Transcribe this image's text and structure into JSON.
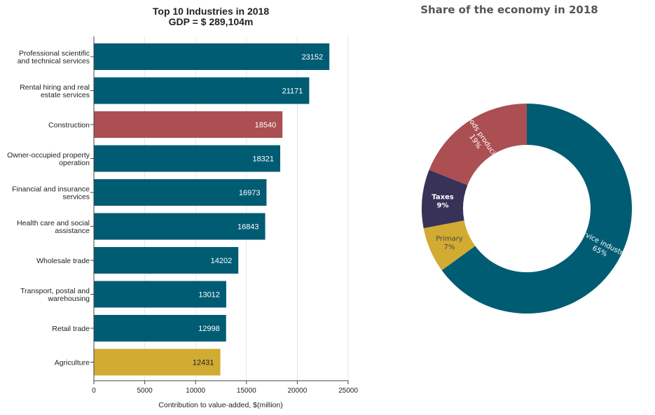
{
  "colors": {
    "teal": "#005c73",
    "red": "#ab4f52",
    "gold": "#d1ab32",
    "navy": "#383258"
  },
  "chart_data": [
    {
      "type": "bar",
      "orientation": "horizontal",
      "title": "Top 10 Industries in 2018",
      "subtitle": "GDP = $ 289,104m",
      "xlabel": "Contribution to value-added, $(million)",
      "ylabel": "",
      "xlim": [
        0,
        25000
      ],
      "xticks": [
        0,
        5000,
        10000,
        15000,
        20000,
        25000
      ],
      "grid": "vertical",
      "categories": [
        [
          "Professional scientific",
          "and technical services"
        ],
        [
          "Rental hiring and real",
          "estate services"
        ],
        [
          "Construction"
        ],
        [
          "Owner-occupied property",
          "operation"
        ],
        [
          "Financial and insurance",
          "services"
        ],
        [
          "Health care and social",
          "assistance"
        ],
        [
          "Wholesale trade"
        ],
        [
          "Transport, postal and",
          "warehousing"
        ],
        [
          "Retail trade"
        ],
        [
          "Agriculture"
        ]
      ],
      "values": [
        23152,
        21171,
        18540,
        18321,
        16973,
        16843,
        14202,
        13012,
        12998,
        12431
      ],
      "bar_colors": [
        "#005c73",
        "#005c73",
        "#ab4f52",
        "#005c73",
        "#005c73",
        "#005c73",
        "#005c73",
        "#005c73",
        "#005c73",
        "#d1ab32"
      ]
    },
    {
      "type": "pie",
      "variant": "donut",
      "title": "Share of the economy in 2018",
      "slices": [
        {
          "name": "Service industries",
          "percent": 65,
          "color": "#005c73"
        },
        {
          "name": "Primary",
          "percent": 7,
          "color": "#d1ab32"
        },
        {
          "name": "Taxes",
          "percent": 9,
          "color": "#383258"
        },
        {
          "name": "Goods producing",
          "percent": 19,
          "color": "#ab4f52"
        }
      ]
    }
  ]
}
